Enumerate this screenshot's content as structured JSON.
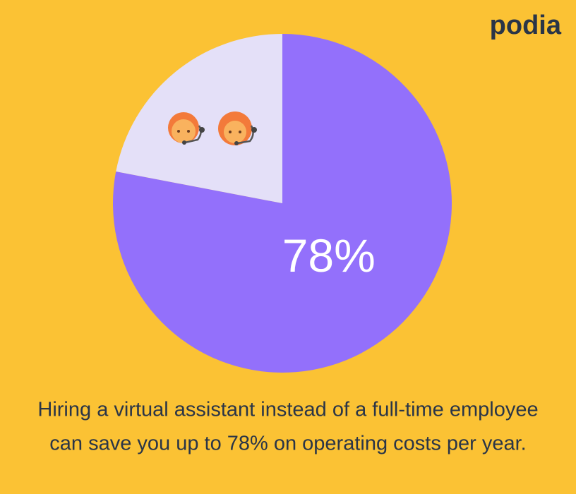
{
  "chart_data": {
    "type": "pie",
    "brand": "podia",
    "values": [
      78,
      22
    ],
    "value_labels": [
      "78%",
      null
    ],
    "colors": [
      "#9370fb",
      "#e4e0f8"
    ],
    "start_angle": 0,
    "direction": "clockwise",
    "caption": [
      "Hiring a virtual assistant instead of a full-time employee",
      "can save you up to 78% on operating costs per year."
    ]
  }
}
